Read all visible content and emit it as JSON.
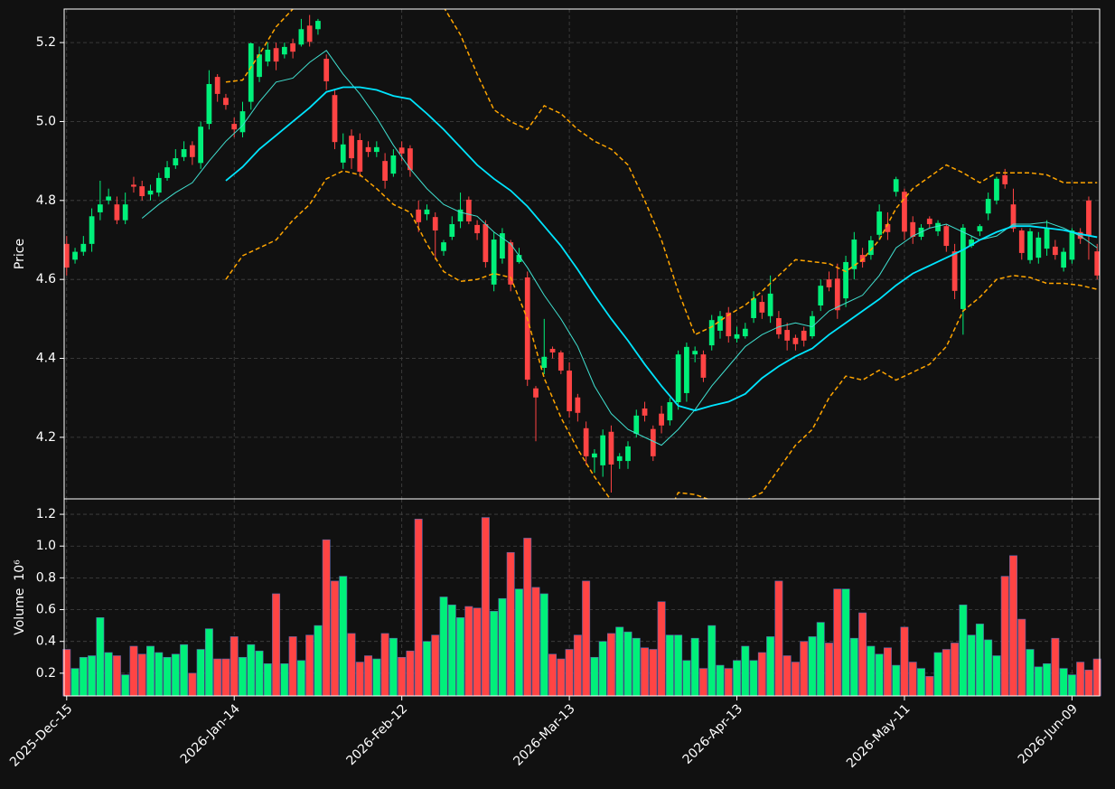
{
  "chart_data": {
    "type": "candlestick",
    "x": [
      "2025-Dec-15",
      null,
      null,
      null,
      null,
      null,
      null,
      null,
      null,
      null,
      null,
      null,
      null,
      null,
      null,
      null,
      null,
      null,
      null,
      null,
      "2026-Jan-14",
      null,
      null,
      null,
      null,
      null,
      null,
      null,
      null,
      null,
      null,
      null,
      null,
      null,
      null,
      null,
      null,
      null,
      null,
      null,
      "2026-Feb-12",
      null,
      null,
      null,
      null,
      null,
      null,
      null,
      null,
      null,
      null,
      null,
      null,
      null,
      null,
      null,
      null,
      null,
      null,
      null,
      "2026-Mar-13",
      null,
      null,
      null,
      null,
      null,
      null,
      null,
      null,
      null,
      null,
      null,
      null,
      null,
      null,
      null,
      null,
      null,
      null,
      null,
      "2026-Apr-13",
      null,
      null,
      null,
      null,
      null,
      null,
      null,
      null,
      null,
      null,
      null,
      null,
      null,
      null,
      null,
      null,
      null,
      null,
      null,
      "2026-May-11",
      null,
      null,
      null,
      null,
      null,
      null,
      null,
      null,
      null,
      null,
      null,
      null,
      null,
      null,
      null,
      null,
      null,
      null,
      null,
      "2026-Jun-09",
      null,
      null,
      null
    ],
    "open": [
      4.69,
      4.65,
      4.67,
      4.69,
      4.77,
      4.8,
      4.79,
      4.75,
      4.84,
      4.836,
      4.815,
      4.82,
      4.857,
      4.889,
      4.91,
      4.94,
      4.895,
      4.994,
      5.113,
      5.06,
      4.994,
      4.973,
      5.05,
      5.113,
      5.152,
      5.186,
      5.17,
      5.198,
      5.195,
      5.243,
      5.234,
      5.159,
      5.067,
      4.896,
      4.964,
      4.953,
      4.935,
      4.923,
      4.9,
      4.868,
      4.934,
      4.932,
      4.777,
      4.765,
      4.758,
      4.672,
      4.708,
      4.747,
      4.802,
      4.738,
      4.74,
      4.587,
      4.653,
      4.694,
      4.644,
      4.605,
      4.324,
      4.376,
      4.424,
      4.415,
      4.369,
      4.301,
      4.223,
      4.149,
      4.129,
      4.214,
      4.14,
      4.14,
      4.209,
      4.273,
      4.221,
      4.26,
      4.243,
      4.289,
      4.312,
      4.41,
      4.41,
      4.433,
      4.47,
      4.516,
      4.45,
      4.456,
      4.502,
      4.543,
      4.507,
      4.502,
      4.472,
      4.452,
      4.47,
      4.456,
      4.534,
      4.6,
      4.602,
      4.552,
      4.626,
      4.662,
      4.662,
      4.713,
      4.74,
      4.822,
      4.822,
      4.745,
      4.708,
      4.754,
      4.722,
      4.735,
      4.671,
      4.525,
      4.685,
      4.722,
      4.767,
      4.8,
      4.864,
      4.79,
      4.724,
      4.649,
      4.655,
      4.678,
      4.683,
      4.63,
      4.65,
      4.72,
      4.8,
      4.671
    ],
    "high": [
      4.71,
      4.68,
      4.71,
      4.78,
      4.85,
      4.83,
      4.81,
      4.82,
      4.86,
      4.85,
      4.84,
      4.87,
      4.9,
      4.93,
      4.95,
      4.95,
      5.0,
      5.13,
      5.12,
      5.07,
      5.01,
      5.05,
      5.2,
      5.19,
      5.2,
      5.2,
      5.2,
      5.21,
      5.26,
      5.27,
      5.26,
      5.17,
      5.08,
      4.97,
      4.98,
      4.97,
      4.95,
      4.95,
      4.92,
      4.93,
      4.95,
      4.94,
      4.8,
      4.79,
      4.77,
      4.7,
      4.76,
      4.82,
      4.81,
      4.75,
      4.75,
      4.72,
      4.73,
      4.7,
      4.68,
      4.62,
      4.33,
      4.5,
      4.43,
      4.42,
      4.39,
      4.31,
      4.24,
      4.17,
      4.22,
      4.23,
      4.16,
      4.19,
      4.27,
      4.29,
      4.23,
      4.28,
      4.3,
      4.42,
      4.44,
      4.43,
      4.42,
      4.51,
      4.52,
      4.53,
      4.48,
      4.49,
      4.57,
      4.56,
      4.61,
      4.52,
      4.49,
      4.46,
      4.48,
      4.52,
      4.6,
      4.62,
      4.64,
      4.66,
      4.72,
      4.68,
      4.71,
      4.79,
      4.77,
      4.86,
      4.83,
      4.76,
      4.74,
      4.76,
      4.75,
      4.74,
      4.69,
      4.74,
      4.71,
      4.74,
      4.82,
      4.86,
      4.88,
      4.83,
      4.73,
      4.73,
      4.72,
      4.75,
      4.7,
      4.68,
      4.73,
      4.73,
      4.81,
      4.69
    ],
    "low": [
      4.61,
      4.64,
      4.66,
      4.67,
      4.75,
      4.79,
      4.74,
      4.74,
      4.82,
      4.8,
      4.8,
      4.81,
      4.85,
      4.88,
      4.9,
      4.89,
      4.88,
      4.98,
      5.05,
      5.03,
      4.96,
      4.96,
      5.03,
      5.1,
      5.14,
      5.13,
      5.16,
      5.16,
      5.19,
      5.19,
      5.22,
      5.08,
      4.93,
      4.88,
      4.88,
      4.86,
      4.91,
      4.91,
      4.83,
      4.86,
      4.9,
      4.86,
      4.72,
      4.75,
      4.65,
      4.66,
      4.7,
      4.73,
      4.74,
      4.7,
      4.63,
      4.57,
      4.64,
      4.57,
      4.64,
      4.33,
      4.19,
      4.36,
      4.4,
      4.36,
      4.25,
      4.24,
      4.13,
      4.11,
      4.1,
      4.06,
      4.12,
      4.12,
      4.2,
      4.24,
      4.14,
      4.21,
      4.23,
      4.27,
      4.29,
      4.39,
      4.34,
      4.42,
      4.45,
      4.44,
      4.44,
      4.45,
      4.49,
      4.5,
      4.49,
      4.45,
      4.42,
      4.42,
      4.43,
      4.45,
      4.52,
      4.57,
      4.5,
      4.53,
      4.6,
      4.63,
      4.65,
      4.7,
      4.7,
      4.81,
      4.7,
      4.69,
      4.7,
      4.73,
      4.71,
      4.67,
      4.55,
      4.46,
      4.68,
      4.71,
      4.75,
      4.79,
      4.83,
      4.72,
      4.65,
      4.64,
      4.64,
      4.66,
      4.65,
      4.62,
      4.64,
      4.69,
      4.65,
      4.6
    ],
    "close": [
      4.63,
      4.67,
      4.69,
      4.76,
      4.79,
      4.81,
      4.75,
      4.79,
      4.835,
      4.811,
      4.825,
      4.857,
      4.884,
      4.907,
      4.93,
      4.91,
      4.987,
      5.095,
      5.07,
      5.042,
      4.98,
      5.026,
      5.198,
      5.17,
      5.182,
      5.152,
      5.189,
      5.177,
      5.234,
      5.202,
      5.255,
      5.102,
      4.948,
      4.942,
      4.907,
      4.873,
      4.923,
      4.935,
      4.85,
      4.914,
      4.919,
      4.877,
      4.745,
      4.777,
      4.724,
      4.694,
      4.74,
      4.777,
      4.747,
      4.717,
      4.644,
      4.701,
      4.717,
      4.587,
      4.662,
      4.346,
      4.301,
      4.404,
      4.415,
      4.369,
      4.266,
      4.262,
      4.152,
      4.159,
      4.205,
      4.131,
      4.152,
      4.177,
      4.255,
      4.255,
      4.152,
      4.23,
      4.289,
      4.41,
      4.429,
      4.419,
      4.351,
      4.497,
      4.507,
      4.456,
      4.461,
      4.475,
      4.552,
      4.516,
      4.564,
      4.461,
      4.445,
      4.436,
      4.445,
      4.507,
      4.584,
      4.58,
      4.522,
      4.644,
      4.701,
      4.644,
      4.699,
      4.772,
      4.72,
      4.854,
      4.721,
      4.708,
      4.731,
      4.74,
      4.743,
      4.685,
      4.571,
      4.731,
      4.701,
      4.735,
      4.804,
      4.855,
      4.841,
      4.729,
      4.667,
      4.722,
      4.706,
      4.731,
      4.662,
      4.67,
      4.724,
      4.703,
      4.71,
      4.61
    ],
    "up_color": "#00f07a",
    "down_color": "#ff4444",
    "ylabel": "Price",
    "ylim": [
      4.044,
      5.285
    ],
    "yticks": [
      4.2,
      4.4,
      4.6,
      4.8,
      {
        "value": 5,
        "label": "5.0"
      },
      5.2
    ],
    "grid": true,
    "overlays": [
      {
        "color": "#40e0d0",
        "width": 1,
        "dashed": false,
        "x": [
          9,
          11,
          13,
          15,
          17,
          19,
          21,
          23,
          25,
          27,
          29,
          31,
          33,
          35,
          37,
          39,
          41,
          43,
          45,
          47,
          49,
          51,
          53,
          55,
          57,
          59,
          61,
          63,
          65,
          67,
          69,
          71,
          73,
          75,
          77,
          79,
          81,
          83,
          85,
          87,
          89,
          91,
          93,
          95,
          97,
          99,
          101,
          103,
          105,
          107,
          109,
          111,
          113,
          115,
          117,
          119,
          121,
          123
        ],
        "values": [
          4.755,
          4.79,
          4.82,
          4.845,
          4.9,
          4.95,
          4.99,
          5.05,
          5.1,
          5.11,
          5.15,
          5.18,
          5.12,
          5.07,
          5.01,
          4.94,
          4.88,
          4.83,
          4.79,
          4.77,
          4.76,
          4.72,
          4.69,
          4.63,
          4.56,
          4.5,
          4.43,
          4.33,
          4.26,
          4.22,
          4.2,
          4.18,
          4.22,
          4.27,
          4.33,
          4.38,
          4.43,
          4.46,
          4.48,
          4.49,
          4.48,
          4.52,
          4.54,
          4.56,
          4.61,
          4.68,
          4.71,
          4.73,
          4.74,
          4.72,
          4.7,
          4.71,
          4.74,
          4.74,
          4.745,
          4.73,
          4.71,
          4.68
        ]
      },
      {
        "color": "#00e5ff",
        "width": 1.8,
        "dashed": false,
        "x": [
          19,
          21,
          23,
          25,
          27,
          29,
          31,
          33,
          35,
          37,
          39,
          41,
          43,
          45,
          47,
          49,
          51,
          53,
          55,
          57,
          59,
          61,
          63,
          65,
          67,
          69,
          71,
          73,
          75,
          77,
          79,
          81,
          83,
          85,
          87,
          89,
          91,
          93,
          95,
          97,
          99,
          101,
          103,
          105,
          107,
          109,
          111,
          113,
          115,
          117,
          119,
          121,
          123
        ],
        "values": [
          4.85,
          4.885,
          4.93,
          4.965,
          5.0,
          5.035,
          5.075,
          5.087,
          5.087,
          5.08,
          5.065,
          5.057,
          5.02,
          4.98,
          4.935,
          4.89,
          4.855,
          4.825,
          4.785,
          4.735,
          4.685,
          4.625,
          4.56,
          4.5,
          4.445,
          4.385,
          4.33,
          4.28,
          4.268,
          4.28,
          4.29,
          4.31,
          4.35,
          4.38,
          4.405,
          4.425,
          4.46,
          4.49,
          4.52,
          4.55,
          4.585,
          4.615,
          4.635,
          4.655,
          4.675,
          4.7,
          4.72,
          4.735,
          4.735,
          4.73,
          4.725,
          4.715,
          4.707
        ]
      },
      {
        "color": "#ffa500",
        "width": 1.5,
        "dashed": true,
        "x": [
          19,
          21,
          23,
          25,
          27,
          29,
          31,
          33,
          35,
          37,
          39,
          41,
          43,
          45,
          47,
          49,
          51,
          53,
          55,
          57,
          59,
          61,
          63,
          65,
          67,
          69,
          71,
          73,
          75,
          77,
          79,
          81,
          83,
          85,
          87,
          89,
          91,
          93,
          95,
          97,
          99,
          101,
          103,
          105,
          107,
          109,
          111,
          113,
          115,
          117,
          119,
          121,
          123
        ],
        "values": [
          5.1,
          5.105,
          5.17,
          5.24,
          5.285,
          5.31,
          5.34,
          5.36,
          5.38,
          5.4,
          5.41,
          5.42,
          5.38,
          5.29,
          5.22,
          5.12,
          5.03,
          5.0,
          4.98,
          5.04,
          5.02,
          4.98,
          4.95,
          4.93,
          4.89,
          4.8,
          4.7,
          4.57,
          4.46,
          4.48,
          4.51,
          4.535,
          4.57,
          4.61,
          4.65,
          4.645,
          4.64,
          4.62,
          4.65,
          4.7,
          4.78,
          4.83,
          4.86,
          4.89,
          4.87,
          4.845,
          4.87,
          4.87,
          4.87,
          4.865,
          4.845,
          4.845,
          4.845
        ]
      },
      {
        "color": "#ffa500",
        "width": 1.5,
        "dashed": true,
        "x": [
          19,
          21,
          23,
          25,
          27,
          29,
          31,
          33,
          35,
          37,
          39,
          41,
          43,
          45,
          47,
          49,
          51,
          53,
          55,
          57,
          59,
          61,
          63,
          65,
          67,
          69,
          71,
          73,
          75,
          77,
          79,
          81,
          83,
          85,
          87,
          89,
          91,
          93,
          95,
          97,
          99,
          101,
          103,
          105,
          107,
          109,
          111,
          113,
          115,
          117,
          119,
          121,
          123
        ],
        "values": [
          4.6,
          4.66,
          4.68,
          4.7,
          4.75,
          4.79,
          4.855,
          4.875,
          4.865,
          4.83,
          4.79,
          4.77,
          4.69,
          4.62,
          4.595,
          4.6,
          4.615,
          4.605,
          4.5,
          4.35,
          4.25,
          4.17,
          4.1,
          4.04,
          3.98,
          3.93,
          3.97,
          4.06,
          4.055,
          4.04,
          4.03,
          4.04,
          4.06,
          4.12,
          4.18,
          4.22,
          4.3,
          4.355,
          4.345,
          4.37,
          4.345,
          4.365,
          4.385,
          4.43,
          4.52,
          4.555,
          4.6,
          4.61,
          4.605,
          4.59,
          4.59,
          4.585,
          4.575
        ]
      }
    ],
    "volume": {
      "ylabel": "Volume",
      "scale_label": "10⁶",
      "ylim": [
        0.057,
        1.297
      ],
      "yticks": [
        0.2,
        0.4,
        0.6,
        0.8,
        {
          "value": 1,
          "label": "1.0"
        },
        1.2
      ],
      "values": [
        0.35,
        0.23,
        0.3,
        0.31,
        0.55,
        0.33,
        0.31,
        0.19,
        0.37,
        0.32,
        0.37,
        0.33,
        0.3,
        0.32,
        0.38,
        0.2,
        0.35,
        0.48,
        0.29,
        0.29,
        0.43,
        0.3,
        0.38,
        0.34,
        0.26,
        0.7,
        0.26,
        0.43,
        0.28,
        0.44,
        0.5,
        1.04,
        0.78,
        0.81,
        0.45,
        0.27,
        0.31,
        0.29,
        0.45,
        0.42,
        0.3,
        0.34,
        1.17,
        0.4,
        0.44,
        0.68,
        0.63,
        0.55,
        0.62,
        0.61,
        1.18,
        0.59,
        0.67,
        0.96,
        0.73,
        1.05,
        0.74,
        0.7,
        0.32,
        0.29,
        0.35,
        0.44,
        0.78,
        0.3,
        0.4,
        0.45,
        0.49,
        0.46,
        0.42,
        0.36,
        0.35,
        0.65,
        0.44,
        0.44,
        0.28,
        0.42,
        0.23,
        0.5,
        0.25,
        0.23,
        0.28,
        0.37,
        0.28,
        0.33,
        0.43,
        0.78,
        0.31,
        0.27,
        0.4,
        0.43,
        0.52,
        0.39,
        0.73,
        0.73,
        0.42,
        0.58,
        0.37,
        0.32,
        0.36,
        0.25,
        0.49,
        0.27,
        0.23,
        0.18,
        0.33,
        0.35,
        0.39,
        0.63,
        0.44,
        0.51,
        0.41,
        0.31,
        0.81,
        0.94,
        0.54,
        0.35,
        0.24,
        0.26,
        0.42,
        0.23,
        0.19,
        0.27,
        0.22,
        0.29
      ]
    }
  }
}
